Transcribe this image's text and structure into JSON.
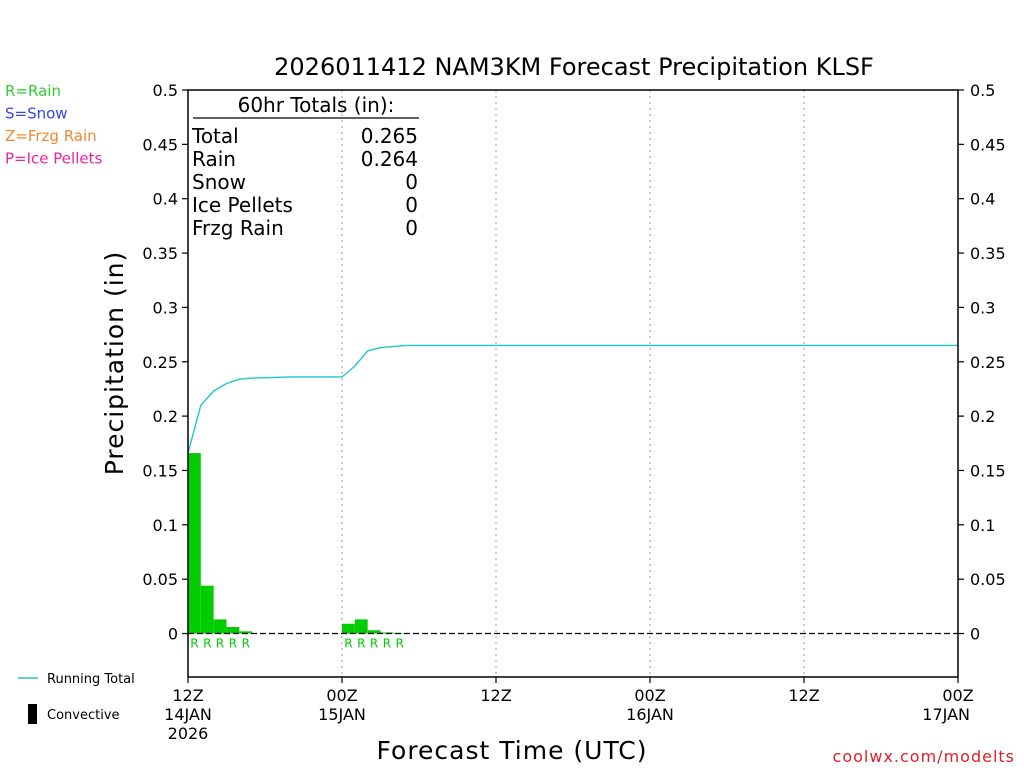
{
  "chart_data": {
    "type": "bar",
    "title": "2026011412 NAM3KM Forecast Precipitation KLSF",
    "ylabel": "Precipitation (in)",
    "xlabel": "Forecast Time (UTC)",
    "ylim": [
      -0.04,
      0.5
    ],
    "yticks": [
      0,
      0.05,
      0.1,
      0.15,
      0.2,
      0.25,
      0.3,
      0.35,
      0.4,
      0.45,
      0.5
    ],
    "ytick_labels": [
      "0",
      "0.05",
      "0.1",
      "0.15",
      "0.2",
      "0.25",
      "0.3",
      "0.35",
      "0.4",
      "0.45",
      "0.5"
    ],
    "xlim_hours": [
      0,
      60
    ],
    "xticks": [
      {
        "hour": 0,
        "line1": "12Z",
        "line2": "14JAN",
        "line3": "2026"
      },
      {
        "hour": 12,
        "line1": "00Z",
        "line2": "15JAN",
        "line3": ""
      },
      {
        "hour": 24,
        "line1": "12Z",
        "line2": "",
        "line3": ""
      },
      {
        "hour": 36,
        "line1": "00Z",
        "line2": "16JAN",
        "line3": ""
      },
      {
        "hour": 48,
        "line1": "12Z",
        "line2": "",
        "line3": ""
      },
      {
        "hour": 60,
        "line1": "00Z",
        "line2": "17JAN",
        "line3": ""
      }
    ],
    "bar_width_hours": 1,
    "bars": [
      {
        "hour": 0,
        "value": 0.166,
        "ptype": "R"
      },
      {
        "hour": 1,
        "value": 0.044,
        "ptype": "R"
      },
      {
        "hour": 2,
        "value": 0.013,
        "ptype": "R"
      },
      {
        "hour": 3,
        "value": 0.006,
        "ptype": "R"
      },
      {
        "hour": 4,
        "value": 0.002,
        "ptype": "R"
      },
      {
        "hour": 12,
        "value": 0.009,
        "ptype": "R"
      },
      {
        "hour": 13,
        "value": 0.013,
        "ptype": "R"
      },
      {
        "hour": 14,
        "value": 0.003,
        "ptype": "R"
      },
      {
        "hour": 15,
        "value": 0.001,
        "ptype": "R"
      },
      {
        "hour": 16,
        "value": 0.0005,
        "ptype": "R"
      }
    ],
    "running_total": {
      "name": "Running Total",
      "color": "#20c8c8",
      "points": [
        [
          0,
          0.166
        ],
        [
          1,
          0.21
        ],
        [
          2,
          0.223
        ],
        [
          3,
          0.23
        ],
        [
          4,
          0.234
        ],
        [
          5,
          0.235
        ],
        [
          8,
          0.236
        ],
        [
          12,
          0.236
        ],
        [
          13,
          0.246
        ],
        [
          14,
          0.26
        ],
        [
          15,
          0.263
        ],
        [
          17,
          0.265
        ],
        [
          60,
          0.265
        ]
      ]
    },
    "totals_box": {
      "header": "60hr Totals (in):",
      "rows": [
        {
          "label": "Total",
          "value": "0.265"
        },
        {
          "label": "Rain",
          "value": "0.264"
        },
        {
          "label": "Snow",
          "value": "0"
        },
        {
          "label": "Ice Pellets",
          "value": "0"
        },
        {
          "label": "Frzg Rain",
          "value": "0"
        }
      ]
    },
    "ptype_legend": [
      {
        "text": "R=Rain",
        "color": "#33cc33"
      },
      {
        "text": "S=Snow",
        "color": "#3344ee"
      },
      {
        "text": "Z=Frzg Rain",
        "color": "#ee8833"
      },
      {
        "text": "P=Ice Pellets",
        "color": "#ee2299"
      }
    ],
    "series_legend": [
      {
        "text": "Running Total",
        "kind": "line",
        "color": "#20c8c8"
      },
      {
        "text": "Convective",
        "kind": "bar",
        "color": "#000000"
      }
    ],
    "bar_color": "#00cc00"
  },
  "credit": "coolwx.com/modelts"
}
